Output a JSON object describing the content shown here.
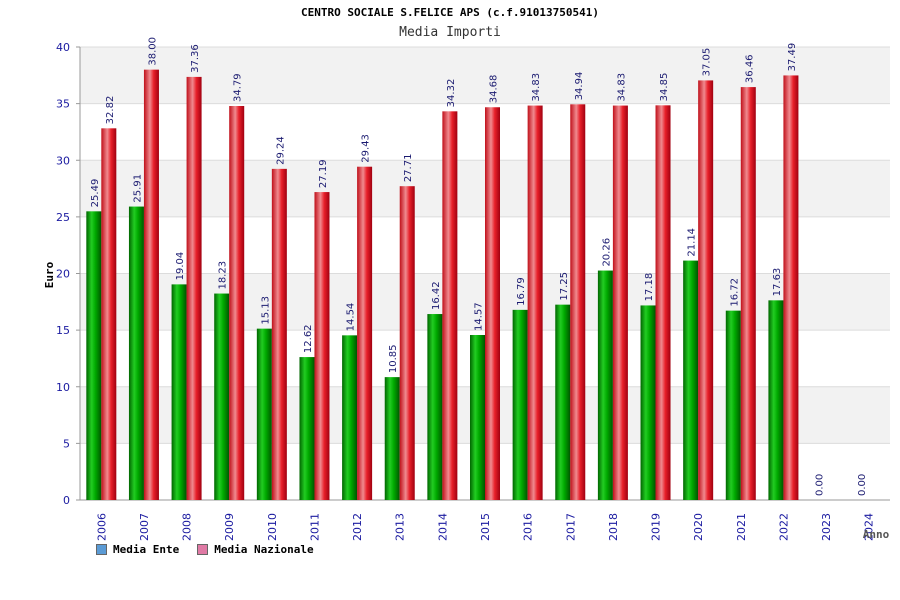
{
  "chart_data": {
    "type": "bar",
    "title": "CENTRO SOCIALE S.FELICE APS (c.f.91013750541)",
    "subtitle": "Media Importi",
    "xlabel": "Anno",
    "ylabel": "Euro",
    "ylim": [
      0,
      40
    ],
    "yticks": [
      0,
      5,
      10,
      15,
      20,
      25,
      30,
      35,
      40
    ],
    "categories": [
      "2006",
      "2007",
      "2008",
      "2009",
      "2010",
      "2011",
      "2012",
      "2013",
      "2014",
      "2015",
      "2016",
      "2017",
      "2018",
      "2019",
      "2020",
      "2021",
      "2022",
      "2023",
      "2024"
    ],
    "series": [
      {
        "name": "Media Ente",
        "color": "#00aa00",
        "legend_color": "#5b9bd5",
        "values": [
          25.49,
          25.91,
          19.04,
          18.23,
          15.13,
          12.62,
          14.54,
          10.85,
          16.42,
          14.57,
          16.79,
          17.25,
          20.26,
          17.18,
          21.14,
          16.72,
          17.63,
          0.0,
          0.0
        ],
        "labels": [
          "25.49",
          "25.91",
          "19.04",
          "18.23",
          "15.13",
          "12.62",
          "14.54",
          "10.85",
          "16.42",
          "14.57",
          "16.79",
          "17.25",
          "20.26",
          "17.18",
          "21.14",
          "16.72",
          "17.63",
          "0.00",
          "0.00"
        ]
      },
      {
        "name": "Media Nazionale",
        "color": "#e8202a",
        "legend_color": "#e07aa5",
        "values": [
          32.82,
          38.0,
          37.36,
          34.79,
          29.24,
          27.19,
          29.43,
          27.71,
          34.32,
          34.68,
          34.83,
          34.94,
          34.83,
          34.85,
          37.05,
          36.46,
          37.49,
          null,
          null
        ],
        "labels": [
          "32.82",
          "38.00",
          "37.36",
          "34.79",
          "29.24",
          "27.19",
          "29.43",
          "27.71",
          "34.32",
          "34.68",
          "34.83",
          "34.94",
          "34.83",
          "34.85",
          "37.05",
          "36.46",
          "37.49",
          "",
          ""
        ]
      }
    ],
    "grid": true,
    "legend_position": "bottom-left"
  }
}
